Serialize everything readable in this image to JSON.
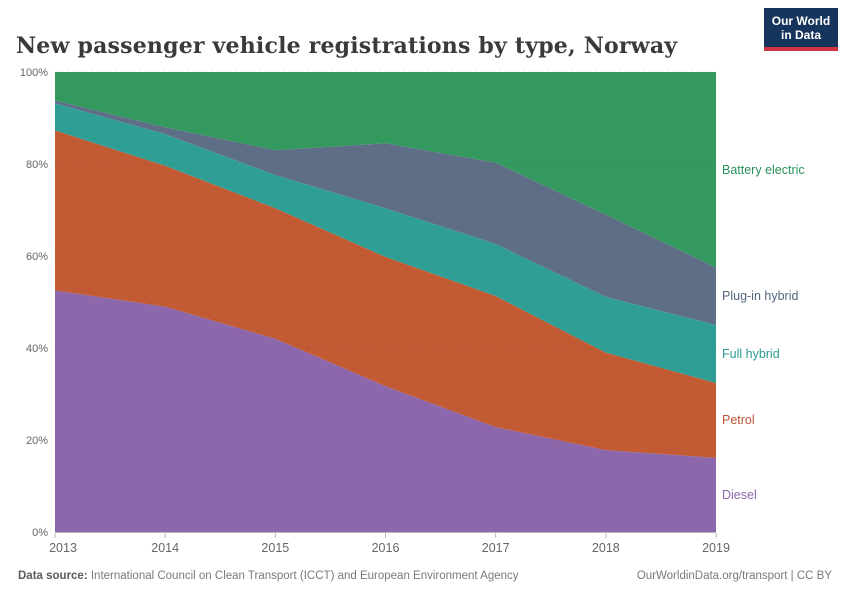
{
  "header": {
    "title": "New passenger vehicle registrations by type, Norway",
    "logo_line1": "Our World",
    "logo_line2": "in Data",
    "logo_bg": "#16355c",
    "logo_accent": "#cf3540"
  },
  "chart_data": {
    "type": "area",
    "stacked": true,
    "title": "New passenger vehicle registrations by type, Norway",
    "xlabel": "",
    "ylabel": "",
    "ylim": [
      0,
      100
    ],
    "grid": "dashed-horizontal",
    "legend_position": "right-edge",
    "categories": [
      "2013",
      "2014",
      "2015",
      "2016",
      "2017",
      "2018",
      "2019"
    ],
    "y_ticks": [
      {
        "value": 0,
        "label": "0%"
      },
      {
        "value": 20,
        "label": "20%"
      },
      {
        "value": 40,
        "label": "40%"
      },
      {
        "value": 60,
        "label": "60%"
      },
      {
        "value": 80,
        "label": "80%"
      },
      {
        "value": 100,
        "label": "100%"
      }
    ],
    "series": [
      {
        "name": "Diesel",
        "color": "#8C67AC",
        "legend_color": "#8C67AC",
        "values": [
          52.5,
          49.0,
          42.0,
          31.7,
          22.8,
          17.8,
          16.1
        ]
      },
      {
        "name": "Petrol",
        "color": "#C25A33",
        "legend_color": "#BE5332",
        "values": [
          34.8,
          30.6,
          28.4,
          28.1,
          28.5,
          21.2,
          16.3
        ]
      },
      {
        "name": "Full hybrid",
        "color": "#2F9E94",
        "legend_color": "#2A9C92",
        "values": [
          5.9,
          6.9,
          7.2,
          10.6,
          11.3,
          12.1,
          12.6
        ]
      },
      {
        "name": "Plug-in hybrid",
        "color": "#5F6E87",
        "legend_color": "#54657E",
        "values": [
          0.6,
          1.5,
          5.4,
          14.1,
          17.7,
          17.9,
          12.5
        ]
      },
      {
        "name": "Battery electric",
        "color": "#33995F",
        "legend_color": "#2B9359",
        "values": [
          6.2,
          12.0,
          17.0,
          15.5,
          19.7,
          31.0,
          42.5
        ]
      }
    ]
  },
  "footer": {
    "source_label": "Data source:",
    "source_text": " International Council on Clean Transport (ICCT) and European Environment Agency",
    "license_text": "OurWorldinData.org/transport | CC BY"
  }
}
